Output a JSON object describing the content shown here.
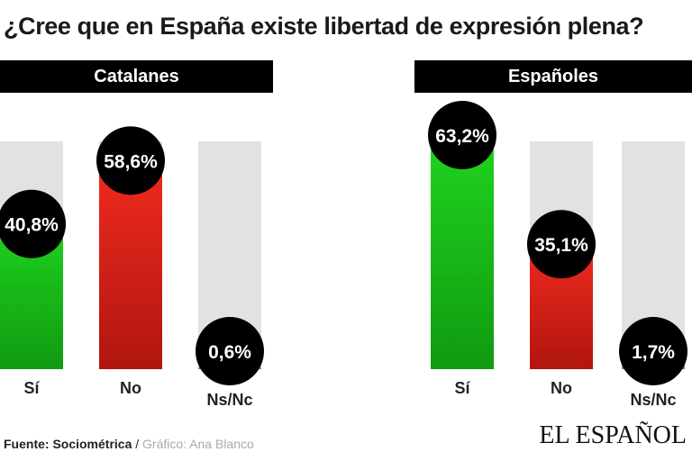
{
  "chart_data": {
    "type": "bar",
    "title": "¿Cree que en España  existe libertad de  expresión plena?",
    "categories": [
      "Sí",
      "No",
      "Ns/Nc"
    ],
    "panels": [
      {
        "name": "Catalanes",
        "values": [
          40.8,
          58.6,
          0.6
        ],
        "labels": [
          "40,8%",
          "58,6%",
          "0,6%"
        ]
      },
      {
        "name": "Españoles",
        "values": [
          63.2,
          35.1,
          1.7
        ],
        "labels": [
          "63,2%",
          "35,1%",
          "1,7%"
        ]
      }
    ],
    "colors": {
      "Sí": "#1cb31c",
      "No": "#d6231c",
      "Ns/Nc": "#888888",
      "background": "#e2e2e2"
    },
    "ylim": [
      0,
      64
    ]
  },
  "footer": {
    "source_label": "Fuente: Sociométrica",
    "separator": " / ",
    "credit": "Gráfico: Ana Blanco",
    "logo": "EL ESPAÑOL"
  }
}
